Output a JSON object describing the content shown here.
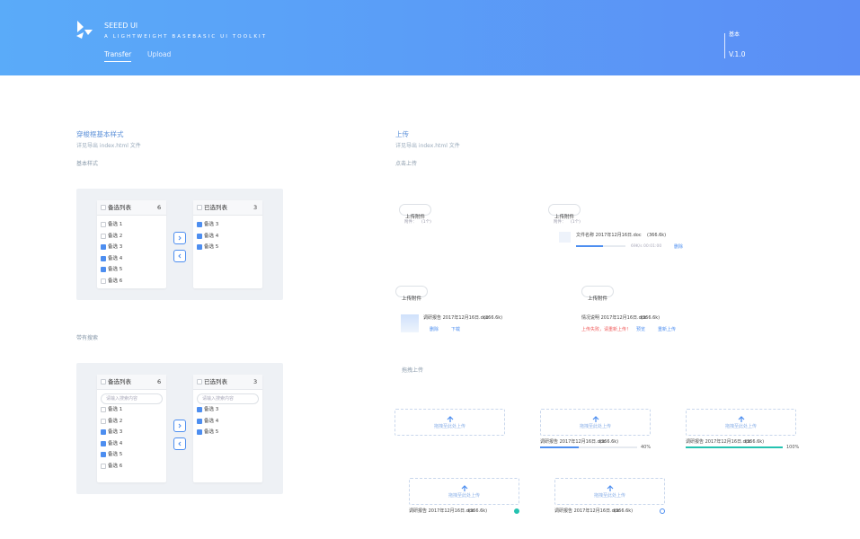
{
  "header": {
    "brand": "SEEED UI",
    "subtitle": "A LIGHTWEIGHT BASEBASIC UI TOOLKIT",
    "nav": [
      "Transfer",
      "Upload"
    ],
    "section": "基本",
    "version": "V.1.0"
  },
  "transfer": {
    "title": "穿梭框基本样式",
    "note": "详见导出 index.html 文件",
    "examples": [
      {
        "label": "基本样式",
        "source": {
          "title": "备选列表",
          "count": 6,
          "items": [
            {
              "text": "备选 1",
              "checked": false
            },
            {
              "text": "备选 2",
              "checked": false
            },
            {
              "text": "备选 3",
              "checked": true
            },
            {
              "text": "备选 4",
              "checked": true
            },
            {
              "text": "备选 5",
              "checked": true
            },
            {
              "text": "备选 6",
              "checked": false
            }
          ]
        },
        "target": {
          "title": "已选列表",
          "count": 3,
          "items": [
            {
              "text": "备选 3",
              "checked": true
            },
            {
              "text": "备选 4",
              "checked": true
            },
            {
              "text": "备选 5",
              "checked": true
            }
          ]
        }
      },
      {
        "label": "带有搜索",
        "search_placeholder": "请输入搜索内容",
        "source": {
          "title": "备选列表",
          "count": 6,
          "items": [
            {
              "text": "备选 1",
              "checked": false
            },
            {
              "text": "备选 2",
              "checked": false
            },
            {
              "text": "备选 3",
              "checked": true
            },
            {
              "text": "备选 4",
              "checked": true
            },
            {
              "text": "备选 5",
              "checked": true
            },
            {
              "text": "备选 6",
              "checked": false
            }
          ]
        },
        "target": {
          "title": "已选列表",
          "count": 3,
          "items": [
            {
              "text": "备选 3",
              "checked": true
            },
            {
              "text": "备选 4",
              "checked": true
            },
            {
              "text": "备选 5",
              "checked": true
            }
          ]
        }
      }
    ]
  },
  "upload": {
    "title": "上传",
    "note": "详见导出 index.html 文件",
    "click_label": "点击上传",
    "click_examples": [
      {
        "button": "上传附件",
        "hint": "附件：",
        "hint_count": "(1个)"
      },
      {
        "button": "上传附件",
        "hint": "附件：",
        "hint_count": "(1个)",
        "file": {
          "name": "文件名称 2017年12月16日.doc",
          "size": "(366.6k)"
        },
        "speed": "69K/s  00:01:00",
        "actions": [
          "删除"
        ]
      },
      {
        "button": "上传附件",
        "hint": "附件：",
        "hint_count": "(1个)",
        "file": {
          "name": "调研报告 2017年12月16日.doc",
          "size": "(366.6k)"
        },
        "actions": [
          "删除",
          "下载"
        ]
      },
      {
        "button": "上传附件",
        "hint": "附件：",
        "hint_count": "(1个)",
        "file": {
          "name": "情况说明 2017年12月16日.doc",
          "size": "(366.6k)"
        },
        "error": "上传失败，请重新上传！",
        "actions": [
          "预览",
          "重新上传"
        ]
      }
    ],
    "drag_label": "拖拽上传",
    "drag_examples": [
      {
        "zone": "拖拽至此处上传"
      },
      {
        "zone": "拖拽至此处上传",
        "file": {
          "name": "调研报告 2017年12月16日.doc",
          "size": "(366.6k)"
        },
        "progress": 40,
        "progress_label": "40%"
      },
      {
        "zone": "拖拽至此处上传",
        "file": {
          "name": "调研报告 2017年12月16日.doc",
          "size": "(366.6k)"
        },
        "progress": 100,
        "progress_label": "100%"
      },
      {
        "zone": "拖拽至此处上传",
        "file": {
          "name": "调研报告 2017年12月16日.doc",
          "size": "(366.6k)"
        }
      },
      {
        "zone": "拖拽至此处上传",
        "file": {
          "name": "调研报告 2017年12月16日.doc",
          "size": "(366.6k)"
        }
      }
    ]
  }
}
